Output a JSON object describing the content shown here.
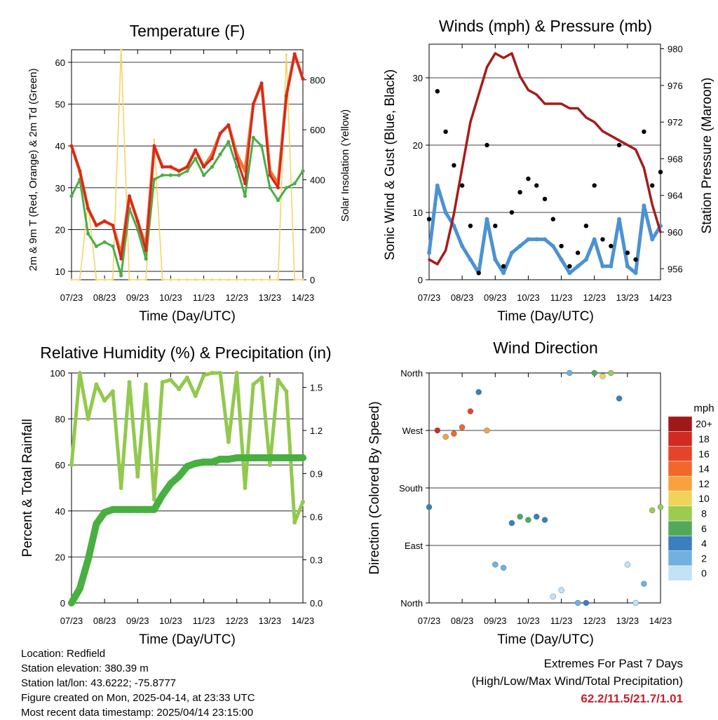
{
  "colors": {
    "t2m": "#d6281f",
    "t9m": "#f0762f",
    "td2m": "#4aae45",
    "solar": "#f6d466",
    "wind": "#4b92d2",
    "gust": "#000000",
    "pressure": "#a61c1c",
    "rh": "#92c94d",
    "precip": "#48b040",
    "grid": "#000000"
  },
  "x_ticks": [
    "07/23",
    "08/23",
    "09/23",
    "10/23",
    "11/23",
    "12/23",
    "13/23",
    "14/23"
  ],
  "panels": {
    "temperature": {
      "title": "Temperature (F)",
      "ylabel_left": "2m & 9m T (Red, Orange) & 2m Td (Green)",
      "ylabel_right": "Solar Insolation (Yellow)",
      "xlabel": "Time (Day/UTC)",
      "left_ticks": [
        "10",
        "20",
        "30",
        "40",
        "50",
        "60"
      ],
      "right_ticks": [
        "0",
        "200",
        "400",
        "600",
        "800"
      ]
    },
    "winds": {
      "title": "Winds (mph) & Pressure (mb)",
      "ylabel_left": "Sonic Wind & Gust (Blue, Black)",
      "ylabel_right": "Station Pressure (Maroon)",
      "xlabel": "Time (Day/UTC)",
      "left_ticks": [
        "0",
        "10",
        "20",
        "30"
      ],
      "right_ticks": [
        "956",
        "960",
        "964",
        "968",
        "972",
        "976",
        "980"
      ]
    },
    "humidity": {
      "title": "Relative Humidity (%) & Precipitation (in)",
      "ylabel_left": "Percent & Total Rainfall",
      "xlabel": "Time (Day/UTC)",
      "left_ticks": [
        "0",
        "20",
        "40",
        "60",
        "80",
        "100"
      ],
      "right_ticks": [
        "0.0",
        "0.3",
        "0.6",
        "0.9",
        "1.2",
        "1.5"
      ]
    },
    "direction": {
      "title": "Wind Direction",
      "ylabel_left": "Direction (Colored By Speed)",
      "xlabel": "Time (Day/UTC)",
      "dir_ticks": [
        "North",
        "East",
        "South",
        "West",
        "North"
      ],
      "legend_title": "mph",
      "legend_labels": [
        "20+",
        "18",
        "16",
        "14",
        "12",
        "10",
        "8",
        "6",
        "4",
        "2",
        "0"
      ],
      "legend_colors": [
        "#a01818",
        "#d02a22",
        "#e6442a",
        "#f2672c",
        "#f8a23c",
        "#f0d45a",
        "#9ccc4e",
        "#52a95c",
        "#3b7fbe",
        "#72b0e0",
        "#c2e2f6"
      ]
    }
  },
  "info": {
    "location": "Location: Redfield",
    "elevation": "Station elevation: 380.39 m",
    "latlon": "Station lat/lon: 43.6222; -75.8777",
    "created": "Figure created on Mon, 2025-04-14, at 23:33 UTC",
    "recent": "Most recent data timestamp: 2025/04/14 23:15:00"
  },
  "extremes": {
    "title": "Extremes For Past 7 Days",
    "subtitle": "(High/Low/Max Wind/Total Precipitation)",
    "values": "62.2/11.5/21.7/1.01"
  },
  "chart_data": [
    {
      "type": "line",
      "title": "Temperature (F)",
      "x": [
        0,
        0.25,
        0.5,
        0.75,
        1,
        1.25,
        1.5,
        1.75,
        2,
        2.25,
        2.5,
        2.75,
        3,
        3.25,
        3.5,
        3.75,
        4,
        4.25,
        4.5,
        4.75,
        5,
        5.25,
        5.5,
        5.75,
        6,
        6.25,
        6.5,
        6.75,
        7
      ],
      "ylim": [
        8,
        63
      ],
      "y2lim": [
        0,
        920
      ],
      "series": [
        {
          "name": "2m T",
          "values": [
            40,
            34,
            25,
            21,
            22,
            21,
            13,
            28,
            22,
            15,
            40,
            35,
            35,
            34,
            35,
            39,
            35,
            37,
            43,
            45,
            37,
            31,
            50,
            55,
            33,
            30,
            52,
            62,
            56
          ]
        },
        {
          "name": "9m T",
          "values": [
            40,
            34,
            25,
            21,
            22,
            21,
            14,
            28,
            22,
            16,
            40,
            35,
            35,
            34,
            35,
            39,
            35,
            38,
            43,
            45,
            38,
            34,
            50,
            55,
            34,
            31,
            52,
            62,
            56
          ]
        },
        {
          "name": "2m Td",
          "values": [
            28,
            32,
            19,
            16,
            17,
            16,
            9,
            25,
            20,
            13,
            32,
            33,
            33,
            33,
            34,
            37,
            33,
            35,
            38,
            41,
            35,
            28,
            42,
            40,
            30,
            27,
            30,
            31,
            34
          ]
        },
        {
          "name": "Solar Insolation",
          "axis": "right",
          "values": [
            0,
            0,
            310,
            0,
            0,
            0,
            920,
            0,
            0,
            0,
            560,
            0,
            0,
            0,
            0,
            0,
            0,
            0,
            0,
            0,
            0,
            0,
            0,
            0,
            0,
            0,
            900,
            0,
            0
          ]
        }
      ]
    },
    {
      "type": "line",
      "title": "Winds (mph) & Pressure (mb)",
      "x": [
        0,
        0.25,
        0.5,
        0.75,
        1,
        1.25,
        1.5,
        1.75,
        2,
        2.25,
        2.5,
        2.75,
        3,
        3.25,
        3.5,
        3.75,
        4,
        4.25,
        4.5,
        4.75,
        5,
        5.25,
        5.5,
        5.75,
        6,
        6.25,
        6.5,
        6.75,
        7
      ],
      "ylim": [
        0,
        35
      ],
      "y2lim": [
        954.8,
        980.5
      ],
      "series": [
        {
          "name": "Sonic Wind",
          "values": [
            4,
            14,
            10,
            8,
            5,
            3,
            1,
            9,
            3,
            1,
            4,
            5,
            6,
            6,
            6,
            5,
            3,
            1,
            2,
            3,
            6,
            2,
            2,
            9,
            2,
            1,
            11,
            6,
            8
          ]
        },
        {
          "name": "Gust",
          "values": [
            9,
            28,
            22,
            17,
            14,
            8,
            1,
            20,
            8,
            2,
            10,
            13,
            15,
            14,
            12,
            9,
            5,
            2,
            4,
            8,
            14,
            6,
            5,
            20,
            4,
            3,
            22,
            14,
            16
          ]
        },
        {
          "name": "Station Pressure",
          "axis": "right",
          "values": [
            957,
            956.5,
            958,
            962,
            967,
            972,
            975,
            978,
            979.5,
            979,
            979.5,
            977,
            975.5,
            975,
            974,
            974,
            974,
            973.5,
            973.5,
            972.5,
            972,
            971,
            970.5,
            970,
            969.5,
            969,
            967,
            963,
            960
          ]
        }
      ]
    },
    {
      "type": "line",
      "title": "Relative Humidity (%) & Precipitation (in)",
      "x": [
        0,
        0.25,
        0.5,
        0.75,
        1,
        1.25,
        1.5,
        1.75,
        2,
        2.25,
        2.5,
        2.75,
        3,
        3.25,
        3.5,
        3.75,
        4,
        4.25,
        4.5,
        4.75,
        5,
        5.25,
        5.5,
        5.75,
        6,
        6.25,
        6.5,
        6.75,
        7
      ],
      "ylim": [
        0,
        100
      ],
      "y2lim": [
        0,
        1.6
      ],
      "series": [
        {
          "name": "Relative Humidity",
          "values": [
            60,
            100,
            80,
            95,
            88,
            92,
            50,
            96,
            55,
            95,
            45,
            96,
            97,
            93,
            98,
            90,
            99,
            100,
            100,
            70,
            100,
            50,
            95,
            98,
            60,
            97,
            92,
            35,
            44
          ]
        },
        {
          "name": "Total Precipitation",
          "axis": "right",
          "values": [
            0,
            0.1,
            0.3,
            0.55,
            0.63,
            0.65,
            0.65,
            0.65,
            0.65,
            0.65,
            0.65,
            0.75,
            0.83,
            0.88,
            0.95,
            0.97,
            0.98,
            0.98,
            1.0,
            1.0,
            1.01,
            1.01,
            1.01,
            1.01,
            1.01,
            1.01,
            1.01,
            1.01,
            1.01
          ]
        }
      ]
    },
    {
      "type": "scatter",
      "title": "Wind Direction",
      "x": [
        0,
        0.25,
        0.5,
        0.75,
        1,
        1.25,
        1.5,
        1.75,
        2,
        2.25,
        2.5,
        2.75,
        3,
        3.25,
        3.5,
        3.75,
        4,
        4.25,
        4.5,
        4.75,
        5,
        5.25,
        5.5,
        5.75,
        6,
        6.25,
        6.5,
        6.75,
        7
      ],
      "ylim": [
        0,
        360
      ],
      "series": [
        {
          "name": "Direction (deg)",
          "values": [
            150,
            270,
            260,
            265,
            275,
            300,
            330,
            270,
            60,
            55,
            125,
            135,
            130,
            135,
            130,
            10,
            20,
            360,
            0,
            0,
            360,
            355,
            360,
            320,
            60,
            0,
            30,
            145,
            150
          ]
        },
        {
          "name": "Speed (mph)",
          "values": [
            4,
            18,
            12,
            15,
            14,
            16,
            4,
            12,
            3,
            2,
            5,
            6,
            6,
            5,
            5,
            1,
            1,
            3,
            3,
            5,
            6,
            10,
            8,
            4,
            1,
            1,
            3,
            8,
            9
          ]
        }
      ]
    }
  ]
}
